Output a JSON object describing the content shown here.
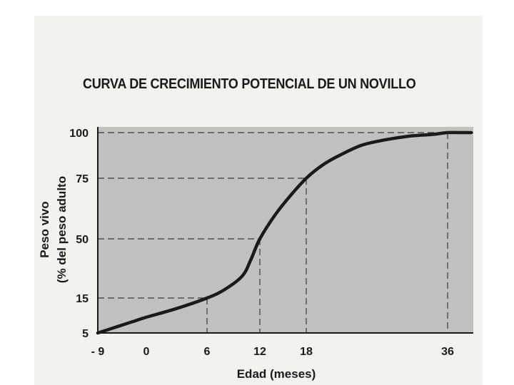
{
  "chart_data": {
    "type": "line",
    "title": "CURVA DE CRECIMIENTO POTENCIAL DE UN NOVILLO",
    "xlabel": "Edad (meses)",
    "ylabel_line1": "Peso vivo",
    "ylabel_line2": "(% del peso adulto",
    "x_ticks": [
      {
        "value": -9,
        "label": "- 9"
      },
      {
        "value": 0,
        "label": "0"
      },
      {
        "value": 6,
        "label": "6"
      },
      {
        "value": 12,
        "label": "12"
      },
      {
        "value": 18,
        "label": "18"
      },
      {
        "value": 36,
        "label": "36"
      }
    ],
    "y_ticks": [
      {
        "value": 5,
        "label": "5"
      },
      {
        "value": 15,
        "label": "15"
      },
      {
        "value": 50,
        "label": "50"
      },
      {
        "value": 75,
        "label": "75"
      },
      {
        "value": 100,
        "label": "100"
      }
    ],
    "series": [
      {
        "x": [
          -9,
          -6,
          -3,
          0,
          3,
          6,
          8,
          10,
          11,
          12,
          14,
          16,
          18,
          20,
          22,
          25,
          28,
          31,
          34,
          36,
          38,
          40
        ],
        "y": [
          5,
          6.5,
          8,
          9.5,
          12,
          15,
          20,
          28,
          38,
          50,
          60,
          68,
          75,
          82,
          87,
          93,
          96,
          98,
          99,
          100,
          100,
          100
        ]
      }
    ],
    "reference_lines": [
      {
        "x": 6,
        "y": 15
      },
      {
        "x": 12,
        "y": 50
      },
      {
        "x": 18,
        "y": 75
      },
      {
        "x": 36,
        "y": 100
      }
    ],
    "xlim": [
      -9,
      40
    ],
    "ylim": [
      5,
      100
    ],
    "grid": false,
    "colors": {
      "plot_background": "#c3c1bf",
      "line": "#1a1a1a",
      "guide": "#3a3a3a"
    }
  }
}
